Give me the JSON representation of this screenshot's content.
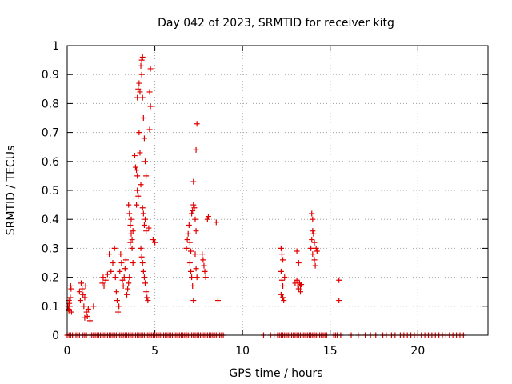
{
  "chart_data": {
    "type": "scatter",
    "title": "Day 042 of 2023, SRMTID for receiver kitg",
    "xlabel": "GPS time / hours",
    "ylabel": "SRMTID / TECUs",
    "xlim": [
      0,
      24
    ],
    "ylim": [
      0,
      1
    ],
    "xticks": [
      0,
      5,
      10,
      15,
      20
    ],
    "xtick_labels": [
      "0",
      "5",
      "10",
      "15",
      "20"
    ],
    "yticks": [
      0,
      0.1,
      0.2,
      0.3,
      0.4,
      0.5,
      0.6,
      0.7,
      0.8,
      0.9,
      1
    ],
    "ytick_labels": [
      "0",
      "0.1",
      "0.2",
      "0.3",
      "0.4",
      "0.5",
      "0.6",
      "0.7",
      "0.8",
      "0.9",
      "1"
    ],
    "grid": true,
    "marker": "+",
    "color": "#e00000",
    "series": [
      {
        "name": "SRMTID",
        "points": [
          [
            0.05,
            0.1
          ],
          [
            0.08,
            0.09
          ],
          [
            0.1,
            0.12
          ],
          [
            0.12,
            0.11
          ],
          [
            0.15,
            0.1
          ],
          [
            0.18,
            0.13
          ],
          [
            0.2,
            0.17
          ],
          [
            0.22,
            0.16
          ],
          [
            0.25,
            0.08
          ],
          [
            0.1,
            0.085
          ],
          [
            0.7,
            0.15
          ],
          [
            0.75,
            0.12
          ],
          [
            0.8,
            0.18
          ],
          [
            0.85,
            0.16
          ],
          [
            0.9,
            0.14
          ],
          [
            0.95,
            0.1
          ],
          [
            1.0,
            0.13
          ],
          [
            1.05,
            0.17
          ],
          [
            1.0,
            0.06
          ],
          [
            1.1,
            0.08
          ],
          [
            1.15,
            0.065
          ],
          [
            1.2,
            0.09
          ],
          [
            1.3,
            0.05
          ],
          [
            1.5,
            0.1
          ],
          [
            2.0,
            0.18
          ],
          [
            2.05,
            0.2
          ],
          [
            2.1,
            0.17
          ],
          [
            2.2,
            0.19
          ],
          [
            2.3,
            0.21
          ],
          [
            2.4,
            0.28
          ],
          [
            2.5,
            0.22
          ],
          [
            2.6,
            0.25
          ],
          [
            2.7,
            0.3
          ],
          [
            2.75,
            0.2
          ],
          [
            2.8,
            0.15
          ],
          [
            2.85,
            0.12
          ],
          [
            2.9,
            0.08
          ],
          [
            2.95,
            0.1
          ],
          [
            3.0,
            0.22
          ],
          [
            3.05,
            0.28
          ],
          [
            3.1,
            0.25
          ],
          [
            3.15,
            0.19
          ],
          [
            3.2,
            0.17
          ],
          [
            3.25,
            0.2
          ],
          [
            3.3,
            0.23
          ],
          [
            3.35,
            0.26
          ],
          [
            3.4,
            0.14
          ],
          [
            3.45,
            0.16
          ],
          [
            3.5,
            0.18
          ],
          [
            3.55,
            0.2
          ],
          [
            3.6,
            0.32
          ],
          [
            3.65,
            0.35
          ],
          [
            3.7,
            0.33
          ],
          [
            3.75,
            0.36
          ],
          [
            3.5,
            0.45
          ],
          [
            3.55,
            0.42
          ],
          [
            3.6,
            0.38
          ],
          [
            3.65,
            0.4
          ],
          [
            3.7,
            0.3
          ],
          [
            3.75,
            0.25
          ],
          [
            3.85,
            0.62
          ],
          [
            3.9,
            0.58
          ],
          [
            3.95,
            0.57
          ],
          [
            4.0,
            0.55
          ],
          [
            3.95,
            0.45
          ],
          [
            4.0,
            0.5
          ],
          [
            4.05,
            0.48
          ],
          [
            4.1,
            0.7
          ],
          [
            4.15,
            0.63
          ],
          [
            4.2,
            0.52
          ],
          [
            4.0,
            0.82
          ],
          [
            4.05,
            0.85
          ],
          [
            4.1,
            0.87
          ],
          [
            4.15,
            0.84
          ],
          [
            4.2,
            0.93
          ],
          [
            4.25,
            0.95
          ],
          [
            4.3,
            0.96
          ],
          [
            4.25,
            0.9
          ],
          [
            4.3,
            0.82
          ],
          [
            4.35,
            0.75
          ],
          [
            4.4,
            0.68
          ],
          [
            4.45,
            0.6
          ],
          [
            4.5,
            0.55
          ],
          [
            4.3,
            0.44
          ],
          [
            4.35,
            0.42
          ],
          [
            4.4,
            0.38
          ],
          [
            4.45,
            0.4
          ],
          [
            4.5,
            0.36
          ],
          [
            4.2,
            0.3
          ],
          [
            4.25,
            0.27
          ],
          [
            4.3,
            0.25
          ],
          [
            4.35,
            0.22
          ],
          [
            4.4,
            0.2
          ],
          [
            4.45,
            0.18
          ],
          [
            4.5,
            0.15
          ],
          [
            4.55,
            0.13
          ],
          [
            4.6,
            0.12
          ],
          [
            4.65,
            0.37
          ],
          [
            4.7,
            0.84
          ],
          [
            4.75,
            0.79
          ],
          [
            4.75,
            0.92
          ],
          [
            4.7,
            0.71
          ],
          [
            4.9,
            0.33
          ],
          [
            5.0,
            0.32
          ],
          [
            6.8,
            0.3
          ],
          [
            6.85,
            0.33
          ],
          [
            6.9,
            0.35
          ],
          [
            6.95,
            0.38
          ],
          [
            7.0,
            0.32
          ],
          [
            7.05,
            0.29
          ],
          [
            7.0,
            0.25
          ],
          [
            7.05,
            0.22
          ],
          [
            7.1,
            0.2
          ],
          [
            7.15,
            0.17
          ],
          [
            7.2,
            0.12
          ],
          [
            7.1,
            0.42
          ],
          [
            7.15,
            0.43
          ],
          [
            7.2,
            0.45
          ],
          [
            7.25,
            0.44
          ],
          [
            7.3,
            0.4
          ],
          [
            7.35,
            0.36
          ],
          [
            7.3,
            0.28
          ],
          [
            7.35,
            0.23
          ],
          [
            7.4,
            0.2
          ],
          [
            7.2,
            0.53
          ],
          [
            7.35,
            0.64
          ],
          [
            7.4,
            0.73
          ],
          [
            7.7,
            0.28
          ],
          [
            7.75,
            0.26
          ],
          [
            7.8,
            0.24
          ],
          [
            7.85,
            0.22
          ],
          [
            7.9,
            0.2
          ],
          [
            8.0,
            0.4
          ],
          [
            8.05,
            0.41
          ],
          [
            8.5,
            0.39
          ],
          [
            8.6,
            0.12
          ],
          [
            12.2,
            0.3
          ],
          [
            12.25,
            0.28
          ],
          [
            12.3,
            0.26
          ],
          [
            12.2,
            0.22
          ],
          [
            12.25,
            0.19
          ],
          [
            12.3,
            0.17
          ],
          [
            12.2,
            0.14
          ],
          [
            12.3,
            0.13
          ],
          [
            12.4,
            0.2
          ],
          [
            12.35,
            0.12
          ],
          [
            13.0,
            0.18
          ],
          [
            13.1,
            0.19
          ],
          [
            13.15,
            0.17
          ],
          [
            13.2,
            0.16
          ],
          [
            13.25,
            0.18
          ],
          [
            13.3,
            0.17
          ],
          [
            13.35,
            0.175
          ],
          [
            13.1,
            0.29
          ],
          [
            13.2,
            0.25
          ],
          [
            13.3,
            0.15
          ],
          [
            13.9,
            0.3
          ],
          [
            13.95,
            0.33
          ],
          [
            14.0,
            0.36
          ],
          [
            14.05,
            0.35
          ],
          [
            14.1,
            0.32
          ],
          [
            14.0,
            0.28
          ],
          [
            14.1,
            0.26
          ],
          [
            14.15,
            0.24
          ],
          [
            14.2,
            0.3
          ],
          [
            14.25,
            0.29
          ],
          [
            13.95,
            0.42
          ],
          [
            14.0,
            0.4
          ],
          [
            15.5,
            0.19
          ],
          [
            15.5,
            0.12
          ]
        ],
        "zero_points_x": [
          0.0,
          0.1,
          0.2,
          0.3,
          0.5,
          0.6,
          0.7,
          0.9,
          1.0,
          1.1,
          1.3,
          1.4,
          1.5,
          1.6,
          1.7,
          1.8,
          1.9,
          2.0,
          2.1,
          2.2,
          2.3,
          2.4,
          2.5,
          2.6,
          2.7,
          2.8,
          2.9,
          3.0,
          3.1,
          3.2,
          3.3,
          3.4,
          3.5,
          3.6,
          3.7,
          3.8,
          3.9,
          4.0,
          4.1,
          4.2,
          4.3,
          4.4,
          4.5,
          4.6,
          4.7,
          4.8,
          4.9,
          5.0,
          5.1,
          5.2,
          5.3,
          5.4,
          5.5,
          5.6,
          5.7,
          5.8,
          5.9,
          6.0,
          6.1,
          6.2,
          6.3,
          6.4,
          6.5,
          6.6,
          6.7,
          6.8,
          6.9,
          7.0,
          7.1,
          7.2,
          7.3,
          7.4,
          7.5,
          7.6,
          7.7,
          7.8,
          7.9,
          8.0,
          8.1,
          8.2,
          8.3,
          8.4,
          8.5,
          8.6,
          8.7,
          8.8,
          8.9,
          11.2,
          11.6,
          11.8,
          12.0,
          12.1,
          12.2,
          12.3,
          12.4,
          12.5,
          12.6,
          12.7,
          12.8,
          12.9,
          13.0,
          13.1,
          13.2,
          13.3,
          13.4,
          13.5,
          13.6,
          13.7,
          13.8,
          13.9,
          14.0,
          14.1,
          14.2,
          14.3,
          14.4,
          14.5,
          14.6,
          14.7,
          14.8,
          15.2,
          15.3,
          15.4,
          15.6,
          16.2,
          16.6,
          17.0,
          17.3,
          17.6,
          18.0,
          18.2,
          18.5,
          18.7,
          19.0,
          19.2,
          19.4,
          19.6,
          19.8,
          20.0,
          20.2,
          20.4,
          20.6,
          20.8,
          21.0,
          21.2,
          21.4,
          21.6,
          21.8,
          22.0,
          22.2,
          22.4,
          22.6
        ]
      }
    ]
  }
}
